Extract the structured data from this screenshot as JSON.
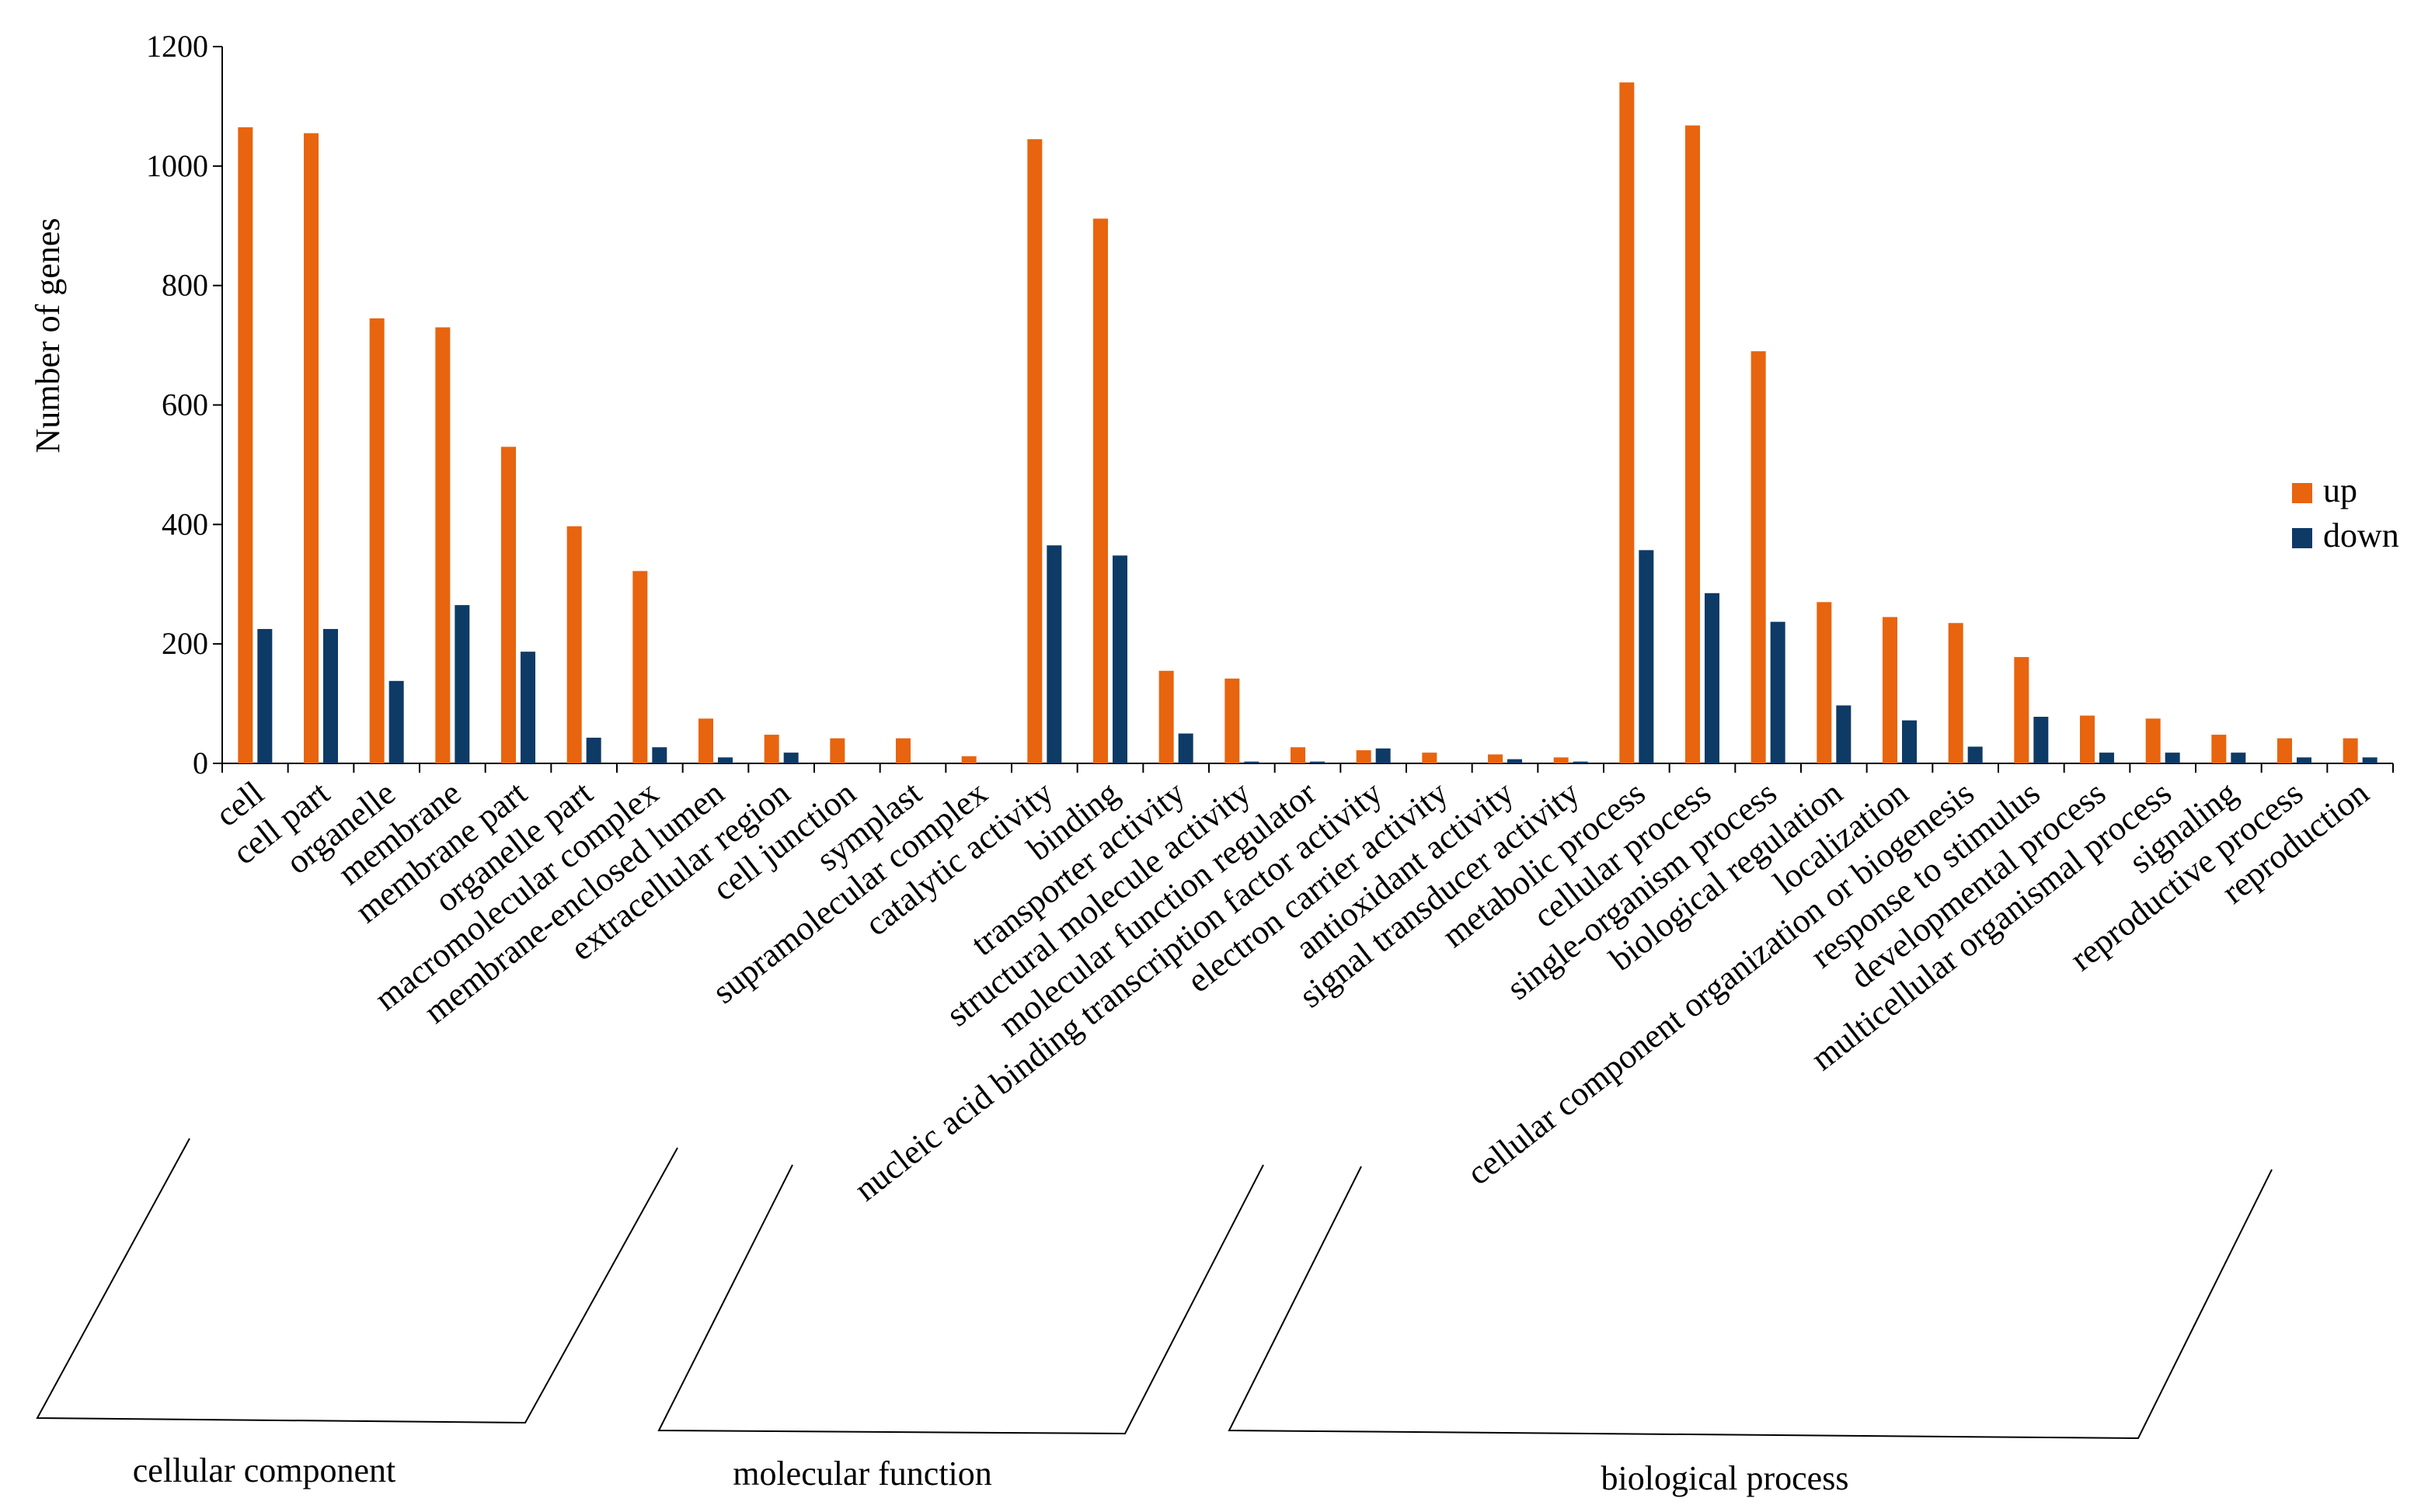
{
  "chart_data": {
    "type": "bar",
    "title": "",
    "xlabel": "",
    "ylabel": "Number of genes",
    "ylim": [
      0,
      1200
    ],
    "yticks": [
      0,
      200,
      400,
      600,
      800,
      1000,
      1200
    ],
    "grid": false,
    "legend_position": "right",
    "categories": [
      "cell",
      "cell part",
      "organelle",
      "membrane",
      "membrane part",
      "organelle part",
      "macromolecular complex",
      "membrane-enclosed lumen",
      "extracellular region",
      "cell junction",
      "symplast",
      "supramolecular complex",
      "catalytic activity",
      "binding",
      "transporter activity",
      "structural molecule activity",
      "molecular function regulator",
      "nucleic acid binding transcription factor activity",
      "electron carrier activity",
      "antioxidant activity",
      "signal transducer activity",
      "metabolic process",
      "cellular process",
      "single-organism process",
      "biological regulation",
      "localization",
      "cellular component organization or biogenesis",
      "response to stimulus",
      "developmental process",
      "multicellular organismal process",
      "signaling",
      "reproductive process",
      "reproduction"
    ],
    "series": [
      {
        "name": "up",
        "color": "#E8640F",
        "values": [
          1065,
          1055,
          745,
          730,
          530,
          397,
          322,
          75,
          48,
          42,
          42,
          12,
          1045,
          912,
          155,
          142,
          27,
          22,
          18,
          15,
          10,
          1140,
          1068,
          690,
          270,
          245,
          235,
          178,
          80,
          75,
          48,
          42,
          42
        ]
      },
      {
        "name": "down",
        "color": "#0E3A66",
        "values": [
          225,
          225,
          138,
          265,
          187,
          43,
          27,
          10,
          18,
          0,
          0,
          0,
          365,
          348,
          50,
          3,
          3,
          25,
          0,
          7,
          3,
          357,
          285,
          237,
          97,
          72,
          28,
          78,
          18,
          18,
          18,
          10,
          10
        ]
      }
    ],
    "groups": [
      {
        "label": "cellular component"
      },
      {
        "label": "molecular function"
      },
      {
        "label": "biological process"
      }
    ]
  }
}
